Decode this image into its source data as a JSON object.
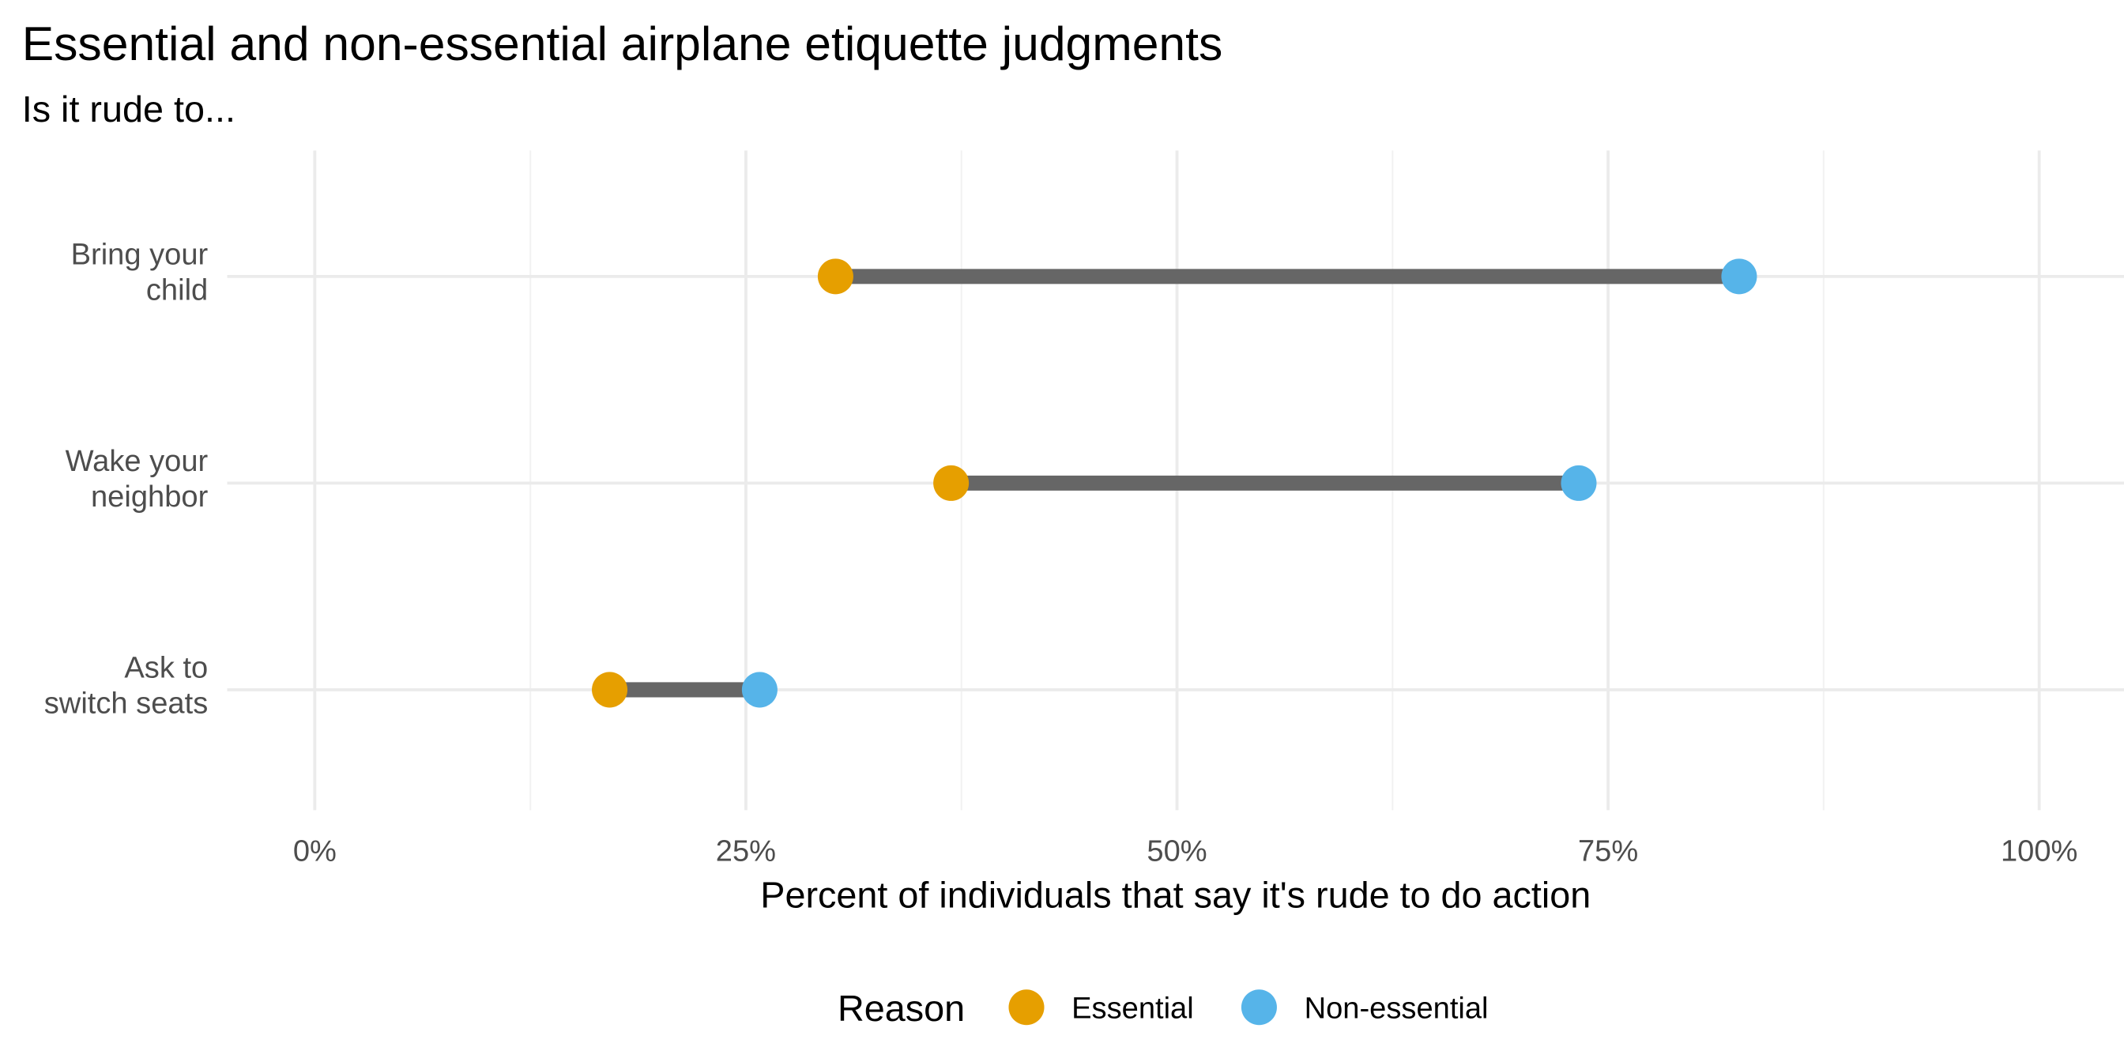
{
  "chart_data": {
    "type": "dumbbell",
    "title": "Essential and non-essential airplane etiquette judgments",
    "subtitle": "Is it rude to...",
    "xlabel": "Percent of individuals that say it's rude to do action",
    "xlim": [
      0,
      1
    ],
    "xticks": [
      {
        "value": 0,
        "label": "0%"
      },
      {
        "value": 0.25,
        "label": "25%"
      },
      {
        "value": 0.5,
        "label": "50%"
      },
      {
        "value": 0.75,
        "label": "75%"
      },
      {
        "value": 1,
        "label": "100%"
      }
    ],
    "categories": [
      {
        "lines": [
          "Bring your",
          "child"
        ],
        "essential": 0.302,
        "non_essential": 0.826
      },
      {
        "lines": [
          "Wake your",
          "neighbor"
        ],
        "essential": 0.369,
        "non_essential": 0.733
      },
      {
        "lines": [
          "Ask to",
          "switch seats"
        ],
        "essential": 0.171,
        "non_essential": 0.258
      }
    ],
    "legend": {
      "title": "Reason",
      "position": "bottom",
      "entries": [
        {
          "key": "essential",
          "label": "Essential",
          "color": "#E69F00"
        },
        {
          "key": "non_essential",
          "label": "Non-essential",
          "color": "#56B4E9"
        }
      ]
    },
    "segment_color": "#666666",
    "grid": true
  }
}
